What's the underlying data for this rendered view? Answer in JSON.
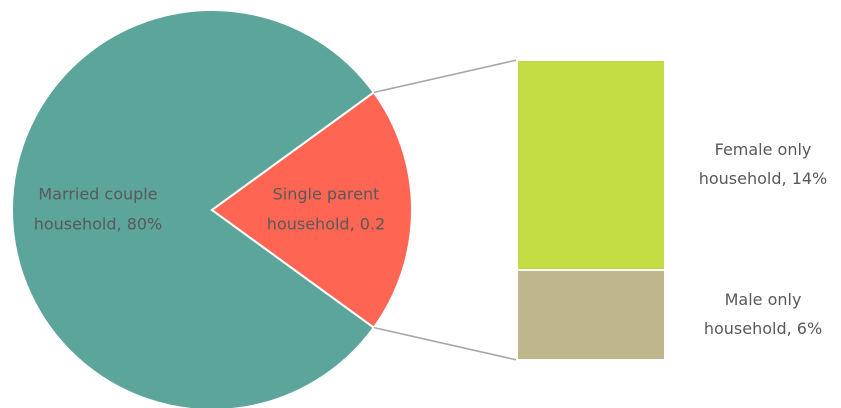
{
  "chart_data": {
    "type": "bar-of-pie",
    "pie": {
      "values": [
        80,
        20
      ],
      "labels": [
        [
          "Married couple",
          "household, 80%"
        ],
        [
          "Single parent",
          "household, 0.2"
        ]
      ],
      "colors": [
        "#5ba59b",
        "#fe6653"
      ]
    },
    "bar": {
      "values": [
        14,
        6
      ],
      "labels": [
        [
          "Female only",
          "household, 14%"
        ],
        [
          "Male only",
          "household, 6%"
        ]
      ],
      "colors": [
        "#c3dc43",
        "#bfb68b"
      ]
    }
  }
}
